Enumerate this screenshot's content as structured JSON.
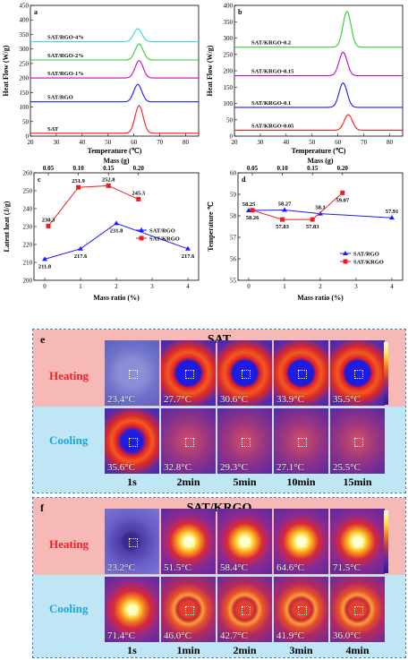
{
  "chart_data": [
    {
      "panel": "a",
      "type": "line",
      "xlabel": "Temperature (℃)",
      "ylabel": "Heat Flow (W/g)",
      "xlim": [
        20,
        85
      ],
      "ylim": [
        0,
        450
      ],
      "xticks": [
        "20",
        "30",
        "40",
        "50",
        "60",
        "70",
        "80"
      ],
      "yticks": [
        "0",
        "50",
        "100",
        "150",
        "200",
        "250",
        "300",
        "350",
        "400",
        "450"
      ],
      "series": [
        {
          "name": "SAT",
          "color": "#ff1a1a",
          "baseline": 10,
          "peak_x": 62,
          "peak_h": 95
        },
        {
          "name": "SAT/RGO",
          "color": "#1a1aff",
          "baseline": 118,
          "peak_x": 61.5,
          "peak_h": 60
        },
        {
          "name": "SAT/RGO-1%",
          "color": "#cc00cc",
          "baseline": 200,
          "peak_x": 62,
          "peak_h": 60
        },
        {
          "name": "SAT/RGO-2%",
          "color": "#33cc33",
          "baseline": 262,
          "peak_x": 62,
          "peak_h": 55
        },
        {
          "name": "SAT/RGO-4%",
          "color": "#33dddd",
          "baseline": 325,
          "peak_x": 61.5,
          "peak_h": 45
        }
      ]
    },
    {
      "panel": "b",
      "type": "line",
      "xlabel": "Temperature (℃)",
      "ylabel": "Heat Flow (W/g)",
      "xlim": [
        20,
        85
      ],
      "ylim": [
        0,
        400
      ],
      "xticks": [
        "20",
        "30",
        "40",
        "50",
        "60",
        "70",
        "80"
      ],
      "yticks": [
        "0",
        "50",
        "100",
        "150",
        "200",
        "250",
        "300",
        "350",
        "400"
      ],
      "series": [
        {
          "name": "SAT/KRGO-0.05",
          "color": "#ff1a1a",
          "baseline": 18,
          "peak_x": 64,
          "peak_h": 48
        },
        {
          "name": "SAT/KRGO-0.1",
          "color": "#1a1aff",
          "baseline": 88,
          "peak_x": 62,
          "peak_h": 75
        },
        {
          "name": "SAT/KRGO-0.15",
          "color": "#cc00cc",
          "baseline": 185,
          "peak_x": 62,
          "peak_h": 72
        },
        {
          "name": "SAT/KRGO-0.2",
          "color": "#33cc33",
          "baseline": 272,
          "peak_x": 63.5,
          "peak_h": 110
        }
      ]
    },
    {
      "panel": "c",
      "type": "line",
      "xlabel": "Mass ratio (%)",
      "ylabel": "Latent heat (J/g)",
      "top_xlabel": "Mass (g)",
      "xlim": [
        -0.3,
        4.3
      ],
      "ylim": [
        200,
        260
      ],
      "xticks": [
        "0",
        "1",
        "2",
        "3",
        "4"
      ],
      "top_xticks": [
        "0.05",
        "0.10",
        "0.15",
        "0.20"
      ],
      "yticks": [
        "200",
        "210",
        "220",
        "230",
        "240",
        "250",
        "260"
      ],
      "legend_position": "center-right",
      "series": [
        {
          "name": "SAT/RGO",
          "color": "#1a1aff",
          "marker": "triangle",
          "x": [
            0,
            1,
            2,
            4
          ],
          "y": [
            211.8,
            217.6,
            231.8,
            217.6
          ],
          "labels": [
            "211.8",
            "217.6",
            "231.8",
            "217.6"
          ]
        },
        {
          "name": "SAT/KRGO",
          "color": "#ee1c1c",
          "marker": "square",
          "top_x": [
            0.05,
            0.1,
            0.15,
            0.2
          ],
          "y": [
            230.3,
            251.9,
            252.8,
            245.3
          ],
          "labels": [
            "230.3",
            "251.9",
            "252.8",
            "245.3"
          ]
        }
      ]
    },
    {
      "panel": "d",
      "type": "line",
      "xlabel": "Mass ratio (%)",
      "ylabel": "Temperature ℃",
      "top_xlabel": "Mass (g)",
      "xlim": [
        -0.3,
        4.3
      ],
      "ylim": [
        55,
        60
      ],
      "xticks": [
        "0",
        "1",
        "2",
        "3",
        "4"
      ],
      "top_xticks": [
        "0.05",
        "0.10",
        "0.15",
        "0.20"
      ],
      "yticks": [
        "55",
        "56",
        "57",
        "58",
        "59",
        "60"
      ],
      "legend_position": "bottom-right",
      "series": [
        {
          "name": "SAT/RGO",
          "color": "#1a1aff",
          "marker": "triangle",
          "x": [
            0,
            1,
            2,
            4
          ],
          "y": [
            58.25,
            58.27,
            58.1,
            57.91
          ],
          "labels": [
            "58.25",
            "58.27",
            "58.1",
            "57.91"
          ]
        },
        {
          "name": "SAT/KRGO",
          "color": "#ee1c1c",
          "marker": "square",
          "top_x": [
            0.05,
            0.1,
            0.15,
            0.2
          ],
          "y": [
            58.26,
            57.83,
            57.83,
            59.07
          ],
          "labels": [
            "58.26",
            "57.83",
            "57.83",
            "59.07"
          ]
        }
      ]
    }
  ],
  "thermal": {
    "e": {
      "letter": "e",
      "title": "SAT",
      "heating_label": "Heating",
      "cooling_label": "Cooling",
      "heating": [
        "23.4°C",
        "27.7°C",
        "30.6°C",
        "33.9°C",
        "35.5°C"
      ],
      "cooling": [
        "35.6°C",
        "32.8°C",
        "29.3°C",
        "27.1°C",
        "25.5°C"
      ],
      "times": [
        "1s",
        "2min",
        "5min",
        "10min",
        "15min"
      ]
    },
    "f": {
      "letter": "f",
      "title": "SAT/KRGO",
      "heating_label": "Heating",
      "cooling_label": "Cooling",
      "heating": [
        "23.2°C",
        "51.5°C",
        "58.4°C",
        "64.6°C",
        "71.5°C"
      ],
      "cooling": [
        "71.4°C",
        "46.0°C",
        "42.7°C",
        "41.9°C",
        "36.0°C"
      ],
      "times": [
        "1s",
        "1min",
        "2min",
        "3min",
        "4min"
      ]
    }
  }
}
